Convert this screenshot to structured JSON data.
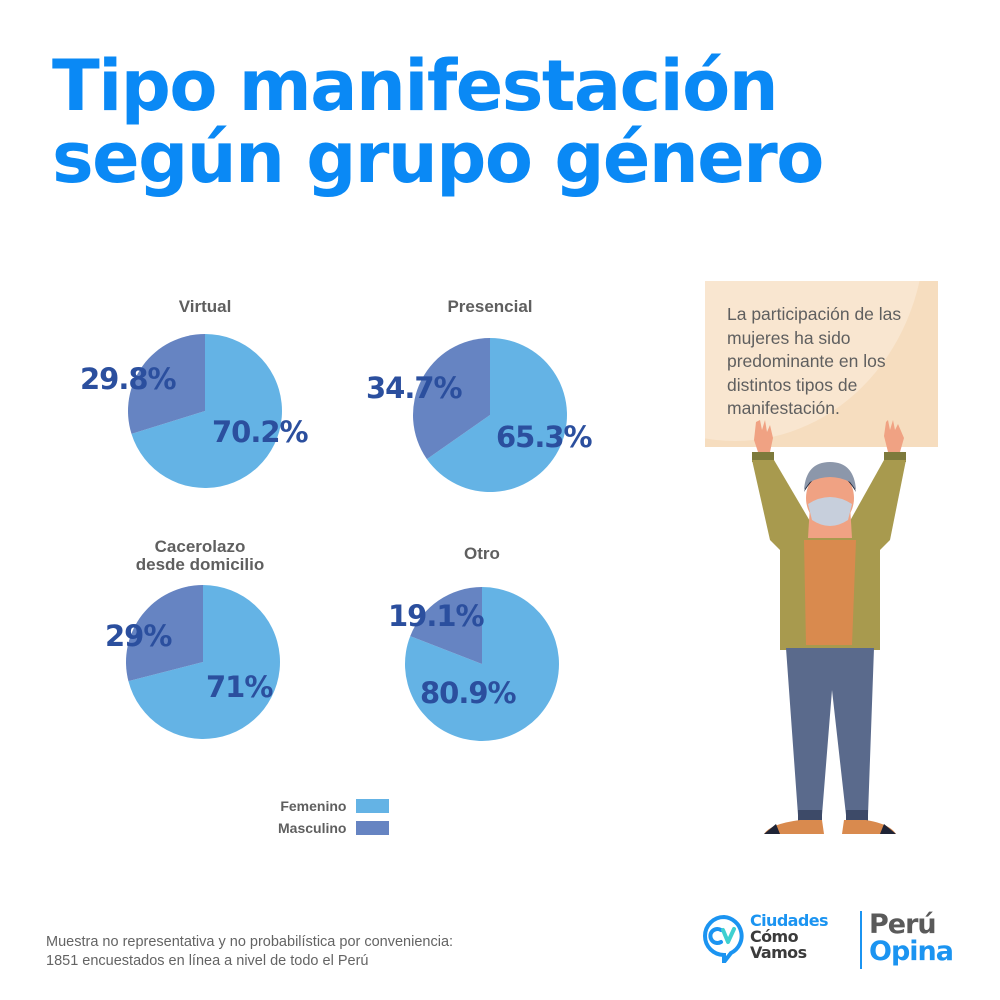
{
  "title": {
    "line1": "Tipo manifestación",
    "line2": "según grupo género"
  },
  "chart_data": [
    {
      "type": "pie",
      "title": "Virtual",
      "categories": [
        "Femenino",
        "Masculino"
      ],
      "values": [
        70.2,
        29.8
      ],
      "labels": [
        "70.2%",
        "29.8%"
      ]
    },
    {
      "type": "pie",
      "title": "Presencial",
      "categories": [
        "Femenino",
        "Masculino"
      ],
      "values": [
        65.3,
        34.7
      ],
      "labels": [
        "65.3%",
        "34.7%"
      ]
    },
    {
      "type": "pie",
      "title": "Cacerolazo desde domicilio",
      "title_lines": [
        "Cacerolazo",
        "desde domicilio"
      ],
      "categories": [
        "Femenino",
        "Masculino"
      ],
      "values": [
        71,
        29
      ],
      "labels": [
        "71%",
        "29%"
      ]
    },
    {
      "type": "pie",
      "title": "Otro",
      "categories": [
        "Femenino",
        "Masculino"
      ],
      "values": [
        80.9,
        19.1
      ],
      "labels": [
        "80.9%",
        "19.1%"
      ]
    }
  ],
  "legend": {
    "placement": "bottom-center",
    "items": [
      {
        "label": "Femenino",
        "color": "#64b3e5"
      },
      {
        "label": "Masculino",
        "color": "#6684c2"
      }
    ]
  },
  "colors": {
    "femenino": "#64b3e5",
    "masculino": "#6684c2",
    "label_text": "#2b4f9e",
    "title": "#0a89f5"
  },
  "sign": {
    "text": "La participación de las mujeres ha sido predominante en los distintos tipos de manifestación."
  },
  "footnote": {
    "line1": "Muestra no representativa y no probabilística por conveniencia:",
    "line2": "1851 encuestados en línea a nivel de todo el Perú"
  },
  "logos": {
    "cv_line1": "Ciudades",
    "cv_line2": "Cómo",
    "cv_line3": "Vamos",
    "po_line1": "Perú",
    "po_line2": "Opina"
  }
}
